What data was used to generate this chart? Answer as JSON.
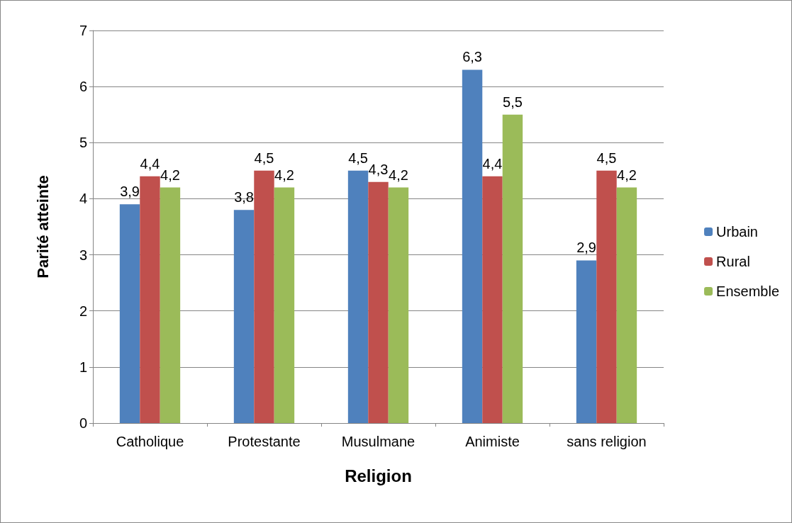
{
  "chart_data": {
    "type": "bar",
    "xlabel": "Religion",
    "ylabel": "Parité atteinte",
    "categories": [
      "Catholique",
      "Protestante",
      "Musulmane",
      "Animiste",
      "sans religion"
    ],
    "series": [
      {
        "name": "Urbain",
        "color": "#4f81bd",
        "values": [
          3.9,
          3.8,
          4.5,
          6.3,
          2.9
        ],
        "value_labels": [
          "3,9",
          "3,8",
          "4,5",
          "6,3",
          "2,9"
        ]
      },
      {
        "name": "Rural",
        "color": "#c0504d",
        "values": [
          4.4,
          4.5,
          4.3,
          4.4,
          4.5
        ],
        "value_labels": [
          "4,4",
          "4,5",
          "4,3",
          "4,4",
          "4,5"
        ]
      },
      {
        "name": "Ensemble",
        "color": "#9bbb59",
        "values": [
          4.2,
          4.2,
          4.2,
          5.5,
          4.2
        ],
        "value_labels": [
          "4,2",
          "4,2",
          "4,2",
          "5,5",
          "4,2"
        ]
      }
    ],
    "ylim": [
      0,
      7
    ],
    "yticks": [
      0,
      1,
      2,
      3,
      4,
      5,
      6,
      7
    ],
    "grid": "y",
    "legend": "right"
  }
}
